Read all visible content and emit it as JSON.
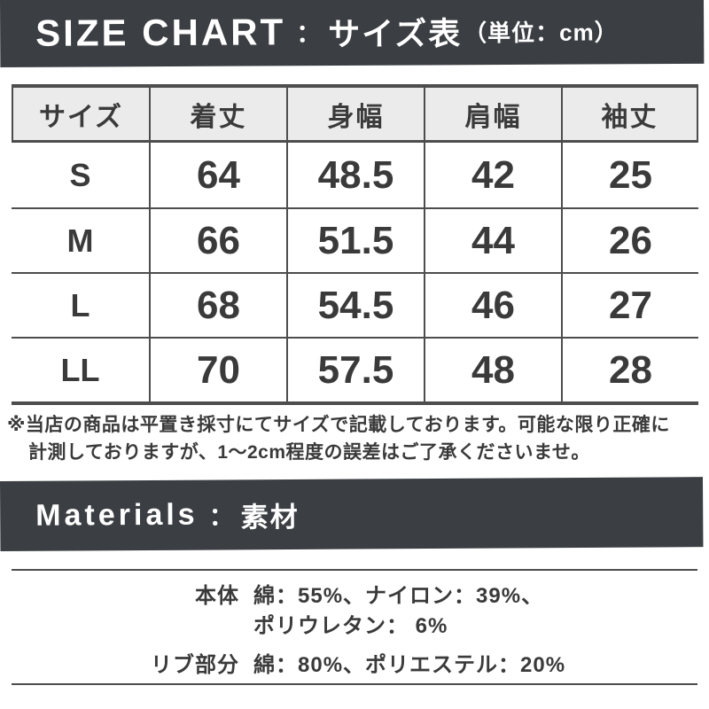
{
  "colors": {
    "banner_bg": "#3b3e42",
    "table_border": "#4d4d4d",
    "header_bg": "#ebebeb",
    "text": "#3a3a3a"
  },
  "size_chart": {
    "banner": {
      "title_en": "SIZE CHART",
      "separator": "：",
      "title_ja": "サイズ表",
      "unit": "（単位：cm）"
    },
    "table": {
      "headers": [
        "サイズ",
        "着丈",
        "身幅",
        "肩幅",
        "袖丈"
      ],
      "rows": [
        {
          "size": "S",
          "values": [
            "64",
            "48.5",
            "42",
            "25"
          ]
        },
        {
          "size": "M",
          "values": [
            "66",
            "51.5",
            "44",
            "26"
          ]
        },
        {
          "size": "L",
          "values": [
            "68",
            "54.5",
            "46",
            "27"
          ]
        },
        {
          "size": "LL",
          "values": [
            "70",
            "57.5",
            "48",
            "28"
          ]
        }
      ]
    },
    "note": {
      "line1": "※当店の商品は平置き採寸にてサイズで記載しております。可能な限り正確に",
      "line2": "計測しておりますが、1〜2cm程度の誤差はご了承くださいませ。"
    }
  },
  "materials": {
    "banner": {
      "title_en": "Materials",
      "separator": "：",
      "title_ja": "素材"
    },
    "rows": [
      {
        "label": "本体",
        "line1": "綿：55%、ナイロン：39%、",
        "line2": "ポリウレタン： 6%"
      },
      {
        "label": "リブ部分",
        "line1": "綿：80%、ポリエステル：20%",
        "line2": ""
      }
    ]
  },
  "chart_data": {
    "type": "table",
    "title": "SIZE CHART：サイズ表",
    "unit": "cm",
    "columns": [
      "サイズ",
      "着丈",
      "身幅",
      "肩幅",
      "袖丈"
    ],
    "rows": [
      [
        "S",
        64,
        48.5,
        42,
        25
      ],
      [
        "M",
        66,
        51.5,
        44,
        26
      ],
      [
        "L",
        68,
        54.5,
        46,
        27
      ],
      [
        "LL",
        70,
        57.5,
        48,
        28
      ]
    ]
  }
}
